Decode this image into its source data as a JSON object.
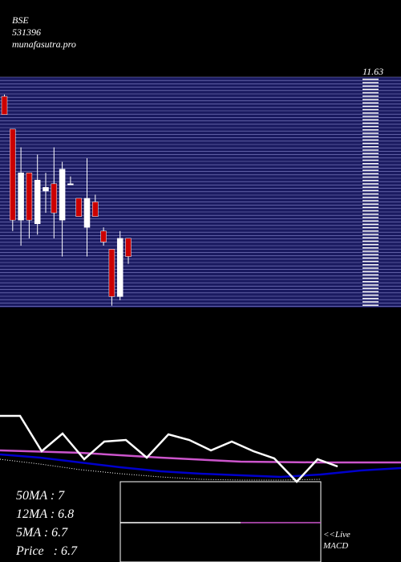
{
  "header": {
    "exchange": "BSE",
    "code": "531396",
    "site": "munafasutra.pro"
  },
  "price_label": "11.63",
  "moving_averages": {
    "ma50_label": "50MA : 7",
    "ma12_label": "12MA : 6.8",
    "ma5_label": "5MA : 6.7",
    "price_label": "Price   : 6.7"
  },
  "macd_label": {
    "line1": "<<Live",
    "line2": "MACD"
  },
  "colors": {
    "background": "#000000",
    "grid_panel": "#1a1a60",
    "grid_line": "#8888cc",
    "up_candle": "#ffffff",
    "down_candle": "#cc0000",
    "ma_blue": "#0000cc",
    "ma_magenta": "#cc55cc",
    "macd_signal": "#cc55cc"
  },
  "chart_data": {
    "type": "candlestick",
    "y_range": [
      5.3,
      11.63
    ],
    "candles": [
      {
        "o": 11.1,
        "h": 11.15,
        "l": 10.6,
        "c": 10.6
      },
      {
        "o": 10.2,
        "h": 10.2,
        "l": 7.4,
        "c": 7.7
      },
      {
        "o": 7.7,
        "h": 9.7,
        "l": 7.0,
        "c": 9.0
      },
      {
        "o": 9.0,
        "h": 9.0,
        "l": 7.2,
        "c": 7.7
      },
      {
        "o": 7.6,
        "h": 9.5,
        "l": 7.3,
        "c": 8.8
      },
      {
        "o": 8.5,
        "h": 9.0,
        "l": 7.9,
        "c": 8.6
      },
      {
        "o": 8.7,
        "h": 9.7,
        "l": 7.2,
        "c": 7.9
      },
      {
        "o": 7.7,
        "h": 9.3,
        "l": 6.7,
        "c": 9.1
      },
      {
        "o": 8.7,
        "h": 8.9,
        "l": 8.7,
        "c": 8.7
      },
      {
        "o": 8.3,
        "h": 8.3,
        "l": 7.8,
        "c": 7.8
      },
      {
        "o": 7.5,
        "h": 9.4,
        "l": 6.7,
        "c": 8.3
      },
      {
        "o": 8.2,
        "h": 8.4,
        "l": 7.8,
        "c": 7.8
      },
      {
        "o": 7.4,
        "h": 7.5,
        "l": 7.0,
        "c": 7.1
      },
      {
        "o": 6.9,
        "h": 6.9,
        "l": 5.35,
        "c": 5.6
      },
      {
        "o": 5.6,
        "h": 7.4,
        "l": 5.5,
        "c": 7.2
      },
      {
        "o": 7.2,
        "h": 7.2,
        "l": 6.5,
        "c": 6.7
      }
    ],
    "ma_lines": {
      "price": [
        [
          0,
          518
        ],
        [
          25,
          518
        ],
        [
          52,
          562
        ],
        [
          78,
          540
        ],
        [
          105,
          572
        ],
        [
          130,
          550
        ],
        [
          157,
          548
        ],
        [
          183,
          570
        ],
        [
          210,
          541
        ],
        [
          236,
          548
        ],
        [
          263,
          561
        ],
        [
          289,
          550
        ],
        [
          316,
          562
        ],
        [
          342,
          571
        ],
        [
          370,
          600
        ],
        [
          396,
          572
        ],
        [
          421,
          581
        ]
      ],
      "magenta": [
        [
          0,
          561
        ],
        [
          100,
          564
        ],
        [
          200,
          570
        ],
        [
          300,
          575
        ],
        [
          400,
          576
        ],
        [
          500,
          576
        ]
      ],
      "blue": [
        [
          0,
          566
        ],
        [
          50,
          570
        ],
        [
          100,
          576
        ],
        [
          150,
          582
        ],
        [
          200,
          587
        ],
        [
          250,
          590
        ],
        [
          300,
          592
        ],
        [
          350,
          594
        ],
        [
          400,
          591
        ],
        [
          450,
          586
        ],
        [
          500,
          583
        ]
      ],
      "dotted": [
        [
          0,
          572
        ],
        [
          50,
          578
        ],
        [
          100,
          585
        ],
        [
          150,
          590
        ],
        [
          200,
          594
        ],
        [
          250,
          597
        ],
        [
          300,
          598
        ],
        [
          350,
          598
        ],
        [
          400,
          597
        ]
      ]
    }
  }
}
